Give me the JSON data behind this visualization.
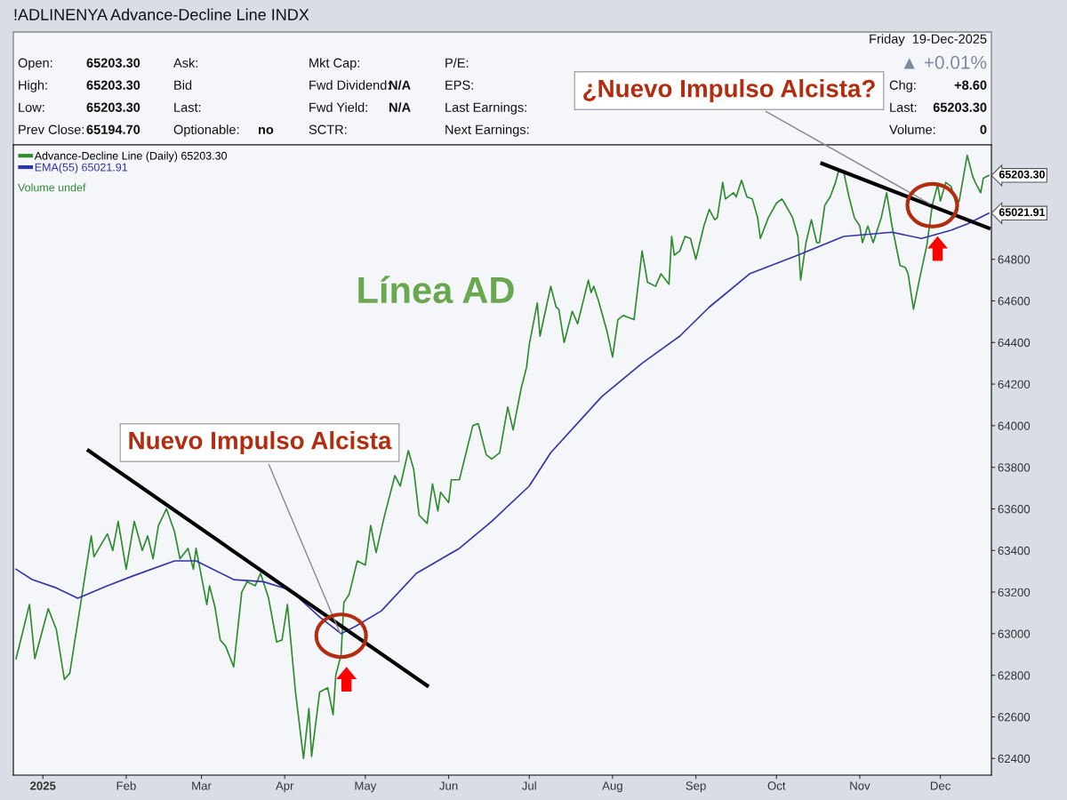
{
  "chart_data": {
    "type": "line",
    "title": "!ADLINENYA Advance-Decline Line INDX",
    "xlim": [
      "2024-12-21",
      "2025-12-20"
    ],
    "ylim": [
      62320,
      65350
    ],
    "xticks": [
      {
        "value": "2025-01-01",
        "label": "2025"
      },
      {
        "value": "2025-02-01",
        "label": "Feb"
      },
      {
        "value": "2025-03-01",
        "label": "Mar"
      },
      {
        "value": "2025-04-01",
        "label": "Apr"
      },
      {
        "value": "2025-05-01",
        "label": "May"
      },
      {
        "value": "2025-06-01",
        "label": "Jun"
      },
      {
        "value": "2025-07-01",
        "label": "Jul"
      },
      {
        "value": "2025-08-01",
        "label": "Aug"
      },
      {
        "value": "2025-09-01",
        "label": "Sep"
      },
      {
        "value": "2025-10-01",
        "label": "Oct"
      },
      {
        "value": "2025-11-01",
        "label": "Nov"
      },
      {
        "value": "2025-12-01",
        "label": "Dec"
      }
    ],
    "yticks": [
      62400,
      62600,
      62800,
      63000,
      63200,
      63400,
      63600,
      63800,
      64000,
      64200,
      64400,
      64600,
      64800
    ],
    "legend": "top left",
    "grid": false,
    "marker": "none",
    "line_style": "solid",
    "series": [
      {
        "name": "Advance-Decline Line (Daily) 65203.30",
        "color": "#2e8b2e",
        "x": [
          "2024-12-22",
          "2024-12-23",
          "2024-12-27",
          "2024-12-29",
          "2025-01-03",
          "2025-01-06",
          "2025-01-09",
          "2025-01-11",
          "2025-01-19",
          "2025-01-20",
          "2025-01-25",
          "2025-01-27",
          "2025-01-29",
          "2025-02-01",
          "2025-02-04",
          "2025-02-07",
          "2025-02-09",
          "2025-02-11",
          "2025-02-13",
          "2025-02-16",
          "2025-02-19",
          "2025-02-21",
          "2025-02-24",
          "2025-02-26",
          "2025-02-27",
          "2025-03-03",
          "2025-03-04",
          "2025-03-06",
          "2025-03-08",
          "2025-03-10",
          "2025-03-13",
          "2025-03-16",
          "2025-03-18",
          "2025-03-21",
          "2025-03-23",
          "2025-03-26",
          "2025-03-29",
          "2025-03-31",
          "2025-04-02",
          "2025-04-05",
          "2025-04-08",
          "2025-04-10",
          "2025-04-11",
          "2025-04-14",
          "2025-04-17",
          "2025-04-19",
          "2025-04-20",
          "2025-04-22",
          "2025-04-23",
          "2025-04-25",
          "2025-04-28",
          "2025-05-01",
          "2025-05-03",
          "2025-05-05",
          "2025-05-08",
          "2025-05-12",
          "2025-05-14",
          "2025-05-17",
          "2025-05-19",
          "2025-05-21",
          "2025-05-24",
          "2025-05-26",
          "2025-05-28",
          "2025-05-29",
          "2025-06-01",
          "2025-06-02",
          "2025-06-05",
          "2025-06-10",
          "2025-06-12",
          "2025-06-15",
          "2025-06-17",
          "2025-06-20",
          "2025-06-23",
          "2025-06-25",
          "2025-06-28",
          "2025-06-30",
          "2025-07-01",
          "2025-07-04",
          "2025-07-05",
          "2025-07-09",
          "2025-07-11",
          "2025-07-12",
          "2025-07-14",
          "2025-07-17",
          "2025-07-19",
          "2025-07-23",
          "2025-07-24",
          "2025-07-25",
          "2025-07-27",
          "2025-07-30",
          "2025-08-01",
          "2025-08-03",
          "2025-08-05",
          "2025-08-07",
          "2025-08-09",
          "2025-08-12",
          "2025-08-14",
          "2025-08-17",
          "2025-08-19",
          "2025-08-22",
          "2025-08-23",
          "2025-08-24",
          "2025-08-26",
          "2025-08-28",
          "2025-08-30",
          "2025-09-01",
          "2025-09-04",
          "2025-09-06",
          "2025-09-08",
          "2025-09-09",
          "2025-09-11",
          "2025-09-12",
          "2025-09-15",
          "2025-09-16",
          "2025-09-18",
          "2025-09-20",
          "2025-09-22",
          "2025-09-24",
          "2025-09-25",
          "2025-09-28",
          "2025-10-01",
          "2025-10-03",
          "2025-10-04",
          "2025-10-07",
          "2025-10-09",
          "2025-10-10",
          "2025-10-12",
          "2025-10-14",
          "2025-10-16",
          "2025-10-17",
          "2025-10-19",
          "2025-10-21",
          "2025-10-23",
          "2025-10-24",
          "2025-10-26",
          "2025-10-28",
          "2025-10-30",
          "2025-11-01",
          "2025-11-02",
          "2025-11-04",
          "2025-11-06",
          "2025-11-09",
          "2025-11-11",
          "2025-11-13",
          "2025-11-16",
          "2025-11-18",
          "2025-11-19",
          "2025-11-21",
          "2025-11-23",
          "2025-11-26",
          "2025-11-28",
          "2025-11-30",
          "2025-12-01",
          "2025-12-03",
          "2025-12-05",
          "2025-12-07",
          "2025-12-08",
          "2025-12-11",
          "2025-12-13",
          "2025-12-14",
          "2025-12-16",
          "2025-12-17",
          "2025-12-19"
        ],
        "values": [
          62880,
          62930,
          63140,
          62880,
          63120,
          63020,
          62780,
          62810,
          63470,
          63370,
          63480,
          63400,
          63540,
          63310,
          63540,
          63400,
          63470,
          63360,
          63520,
          63600,
          63490,
          63360,
          63410,
          63310,
          63410,
          63140,
          63230,
          63130,
          62970,
          62940,
          62840,
          63200,
          63250,
          63230,
          63290,
          63170,
          62960,
          62970,
          63140,
          62720,
          62400,
          62640,
          62410,
          62720,
          62740,
          62610,
          62800,
          62900,
          63150,
          63190,
          63350,
          63330,
          63520,
          63390,
          63560,
          63760,
          63710,
          63880,
          63790,
          63570,
          63530,
          63720,
          63590,
          63680,
          63630,
          63740,
          63740,
          64000,
          64010,
          63860,
          63840,
          63870,
          64090,
          63980,
          64180,
          64280,
          64390,
          64590,
          64430,
          64670,
          64570,
          64560,
          64400,
          64550,
          64490,
          64700,
          64640,
          64670,
          64590,
          64450,
          64330,
          64510,
          64530,
          64520,
          64510,
          64840,
          64690,
          64670,
          64730,
          64680,
          64910,
          64820,
          64840,
          64910,
          64900,
          64800,
          64960,
          65040,
          64990,
          65000,
          65170,
          65090,
          65120,
          65100,
          65180,
          65100,
          65090,
          65000,
          64900,
          65000,
          65070,
          65090,
          65070,
          65000,
          64910,
          64700,
          64880,
          64990,
          64880,
          64880,
          65060,
          65100,
          65170,
          65220,
          65220,
          65100,
          65000,
          64960,
          64880,
          64960,
          64880,
          65000,
          65120,
          64960,
          64770,
          64760,
          64730,
          64560,
          64690,
          64870,
          65060,
          65160,
          65080,
          65170,
          65150,
          65060,
          65080,
          65300,
          65200,
          65170,
          65120,
          65190,
          65203.3
        ]
      },
      {
        "name": "EMA(55) 65021.91",
        "color": "#3333aa",
        "x": [
          "2024-12-22",
          "2024-12-28",
          "2025-01-06",
          "2025-01-14",
          "2025-01-25",
          "2025-02-04",
          "2025-02-19",
          "2025-02-27",
          "2025-03-13",
          "2025-03-24",
          "2025-04-03",
          "2025-04-14",
          "2025-04-22",
          "2025-04-28",
          "2025-05-07",
          "2025-05-20",
          "2025-06-05",
          "2025-06-17",
          "2025-07-01",
          "2025-07-09",
          "2025-07-28",
          "2025-08-12",
          "2025-08-26",
          "2025-09-06",
          "2025-09-21",
          "2025-10-09",
          "2025-10-26",
          "2025-11-13",
          "2025-11-24",
          "2025-12-05",
          "2025-12-11",
          "2025-12-19"
        ],
        "values": [
          63310,
          63260,
          63220,
          63170,
          63230,
          63280,
          63350,
          63350,
          63260,
          63250,
          63210,
          63080,
          63000,
          63040,
          63110,
          63290,
          63410,
          63540,
          63710,
          63870,
          64140,
          64300,
          64430,
          64570,
          64730,
          64820,
          64910,
          64930,
          64900,
          64940,
          64970,
          65021.91
        ]
      },
      {
        "type": "line",
        "color": "#000000",
        "x": [
          "2025-01-18",
          "2025-05-24"
        ],
        "values": [
          63880,
          62750
        ]
      },
      {
        "type": "line",
        "color": "#000000",
        "x": [
          "2025-10-18",
          "2025-12-19"
        ],
        "values": [
          65260,
          64950
        ]
      }
    ],
    "annotations": [
      "Línea AD",
      "Open:",
      "65203.30",
      "High:",
      "65203.30",
      "Low:",
      "65203.30",
      "Prev Close:",
      "65194.70",
      "Ask:",
      "Bid",
      "Last:",
      "Optionable:",
      "no",
      "Mkt Cap:",
      "Fwd Dividend:",
      "N/A",
      "Fwd Yield:",
      "N/A",
      "SCTR:",
      "P/E:",
      "EPS:",
      "Last Earnings:",
      "Next Earnings:",
      "Friday  19-Dec-2025",
      "▲ +0.01%",
      "Chg:",
      "+8.60",
      "Last:",
      "65203.30",
      "Volume:",
      "0",
      "Volume undef",
      {
        "text": "Nuevo Impulso Alcista",
        "x": "2025-04-22",
        "y": 62990
      },
      {
        "text": "¿Nuevo Impulso Alcista?",
        "x": "2025-11-28",
        "y": 65060
      },
      {
        "text": "65203.30",
        "x": "2025-12-19",
        "y": 65203.3
      },
      {
        "text": "65021.91",
        "x": "2025-12-19",
        "y": 65021.91
      }
    ]
  }
}
